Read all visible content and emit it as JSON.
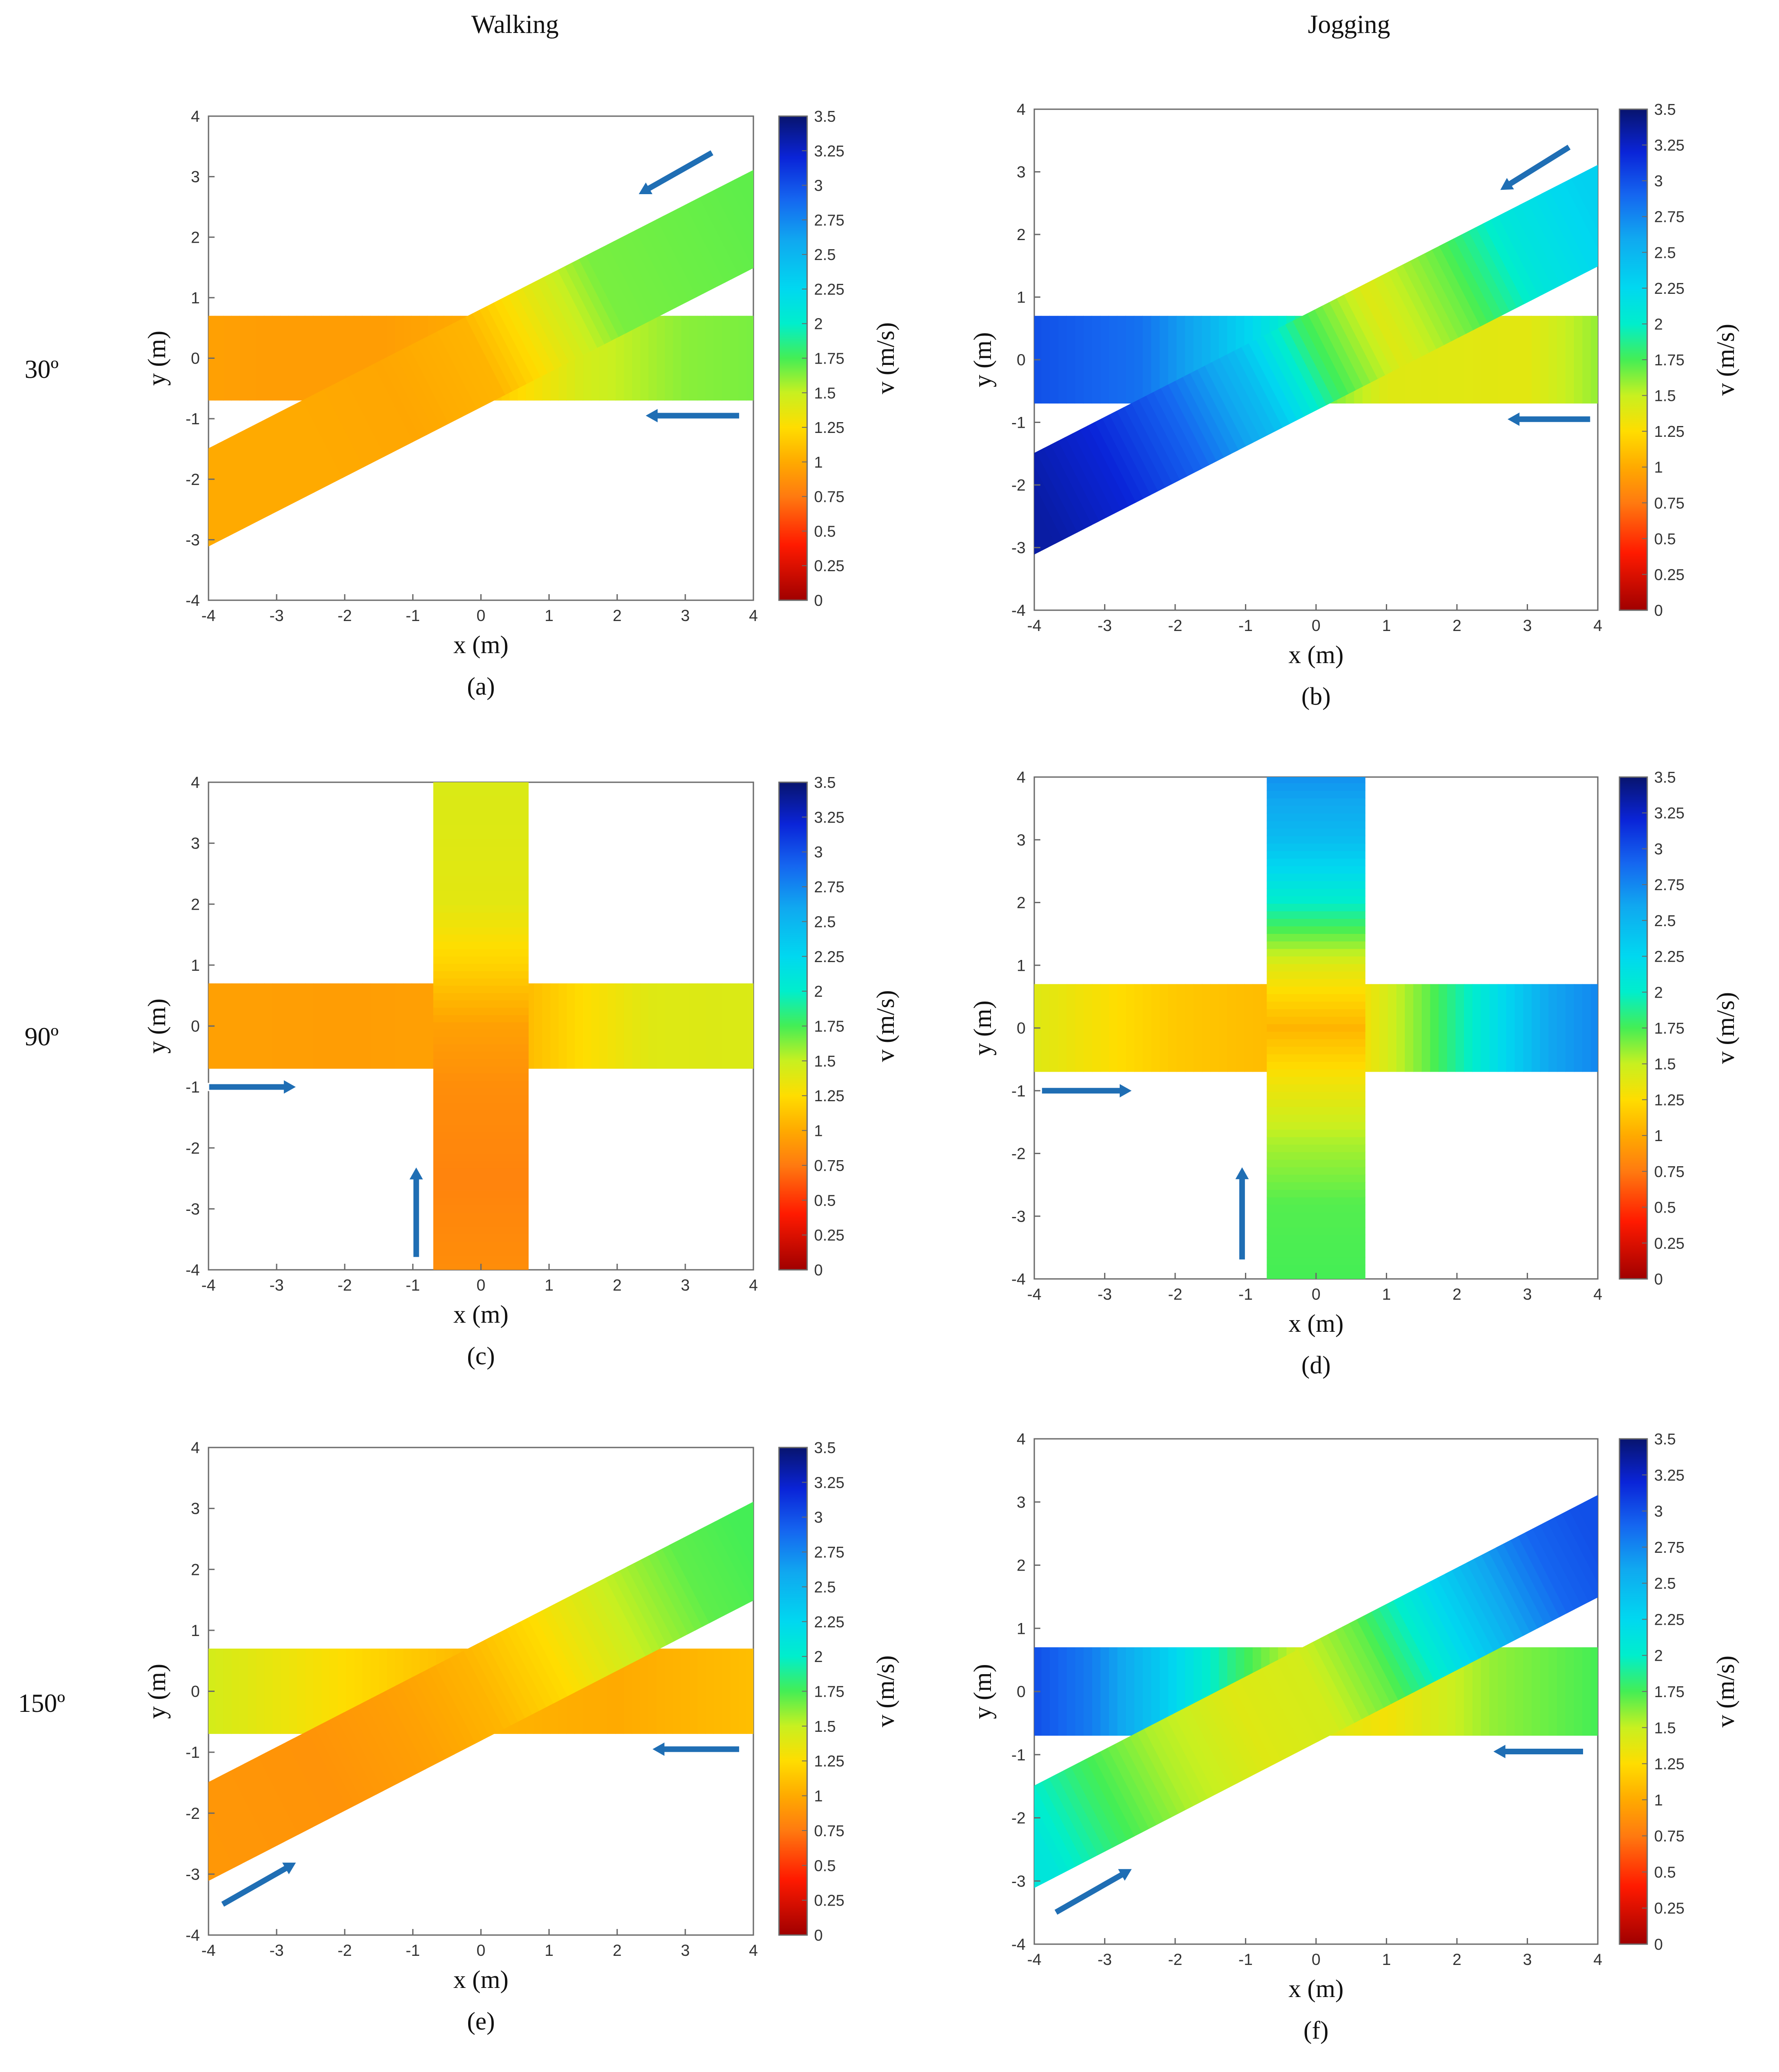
{
  "figure": {
    "column_titles": [
      "Walking",
      "Jogging"
    ],
    "row_labels": [
      "30º",
      "90º",
      "150º"
    ]
  },
  "colorbar": {
    "label": "v (m/s)",
    "ticks": [
      "0",
      "0.25",
      "0.5",
      "0.75",
      "1",
      "1.25",
      "1.5",
      "1.75",
      "2",
      "2.25",
      "2.5",
      "2.75",
      "3",
      "3.25",
      "3.5"
    ],
    "stops": [
      {
        "v": 0.0,
        "color": "#a00000"
      },
      {
        "v": 0.4,
        "color": "#ff1a00"
      },
      {
        "v": 0.75,
        "color": "#ff7a10"
      },
      {
        "v": 1.0,
        "color": "#ffaa00"
      },
      {
        "v": 1.25,
        "color": "#ffdd00"
      },
      {
        "v": 1.5,
        "color": "#c8f020"
      },
      {
        "v": 1.75,
        "color": "#44ee55"
      },
      {
        "v": 2.0,
        "color": "#00eecc"
      },
      {
        "v": 2.25,
        "color": "#00d8f0"
      },
      {
        "v": 2.6,
        "color": "#10a8f0"
      },
      {
        "v": 2.9,
        "color": "#1566f0"
      },
      {
        "v": 3.2,
        "color": "#0a24d8"
      },
      {
        "v": 3.5,
        "color": "#08146e"
      }
    ]
  },
  "arrow_color": "#1f6eb4",
  "chart_data": [
    {
      "type": "heatmap",
      "panel": "(a)",
      "mode": "Walking",
      "angle": "30º",
      "xlabel": "x (m)",
      "ylabel": "y (m)",
      "xlim": [
        -4,
        4
      ],
      "ylim": [
        -4,
        4
      ],
      "xticks": [
        "-4",
        "-3",
        "-2",
        "-1",
        "0",
        "1",
        "2",
        "3",
        "4"
      ],
      "yticks": [
        "-4",
        "-3",
        "-2",
        "-1",
        "0",
        "1",
        "2",
        "3",
        "4"
      ],
      "corridor_half_width": 0.7,
      "streams": [
        {
          "name": "horizontal stream",
          "from": [
            4,
            0
          ],
          "to": [
            -4,
            0
          ],
          "speed_along_path": [
            [
              0,
              1.65
            ],
            [
              1,
              1.62
            ],
            [
              2.5,
              1.45
            ],
            [
              3.6,
              1.2
            ],
            [
              4.2,
              1.0
            ],
            [
              5.5,
              0.93
            ],
            [
              7,
              0.93
            ],
            [
              8,
              0.95
            ]
          ]
        },
        {
          "name": "diagonal stream",
          "from": [
            4,
            2.3
          ],
          "to": [
            -4,
            -2.3
          ],
          "speed_along_path": [
            [
              0,
              1.7
            ],
            [
              2.5,
              1.65
            ],
            [
              3.6,
              1.35
            ],
            [
              4.6,
              1.05
            ],
            [
              6,
              0.98
            ],
            [
              7.5,
              1.0
            ],
            [
              9.2,
              1.0
            ]
          ]
        }
      ],
      "arrows": [
        {
          "from": [
            3.4,
            3.4
          ],
          "to": [
            2.3,
            2.7
          ]
        },
        {
          "from": [
            3.8,
            -0.95
          ],
          "to": [
            2.4,
            -0.95
          ]
        }
      ]
    },
    {
      "type": "heatmap",
      "panel": "(b)",
      "mode": "Jogging",
      "angle": "30º",
      "xlabel": "x (m)",
      "ylabel": "y (m)",
      "xlim": [
        -4,
        4
      ],
      "ylim": [
        -4,
        4
      ],
      "xticks": [
        "-4",
        "-3",
        "-2",
        "-1",
        "0",
        "1",
        "2",
        "3",
        "4"
      ],
      "yticks": [
        "-4",
        "-3",
        "-2",
        "-1",
        "0",
        "1",
        "2",
        "3",
        "4"
      ],
      "corridor_half_width": 0.7,
      "streams": [
        {
          "name": "horizontal stream",
          "from": [
            4,
            0
          ],
          "to": [
            -4,
            0
          ],
          "speed_along_path": [
            [
              0,
              1.6
            ],
            [
              1,
              1.38
            ],
            [
              3.0,
              1.4
            ],
            [
              3.8,
              1.65
            ],
            [
              4.6,
              2.1
            ],
            [
              5.6,
              2.55
            ],
            [
              6.5,
              2.85
            ],
            [
              8,
              3.0
            ]
          ]
        },
        {
          "name": "diagonal stream",
          "from": [
            4,
            2.3
          ],
          "to": [
            -4,
            -2.3
          ],
          "speed_along_path": [
            [
              0,
              2.3
            ],
            [
              1.2,
              2.1
            ],
            [
              2.3,
              1.7
            ],
            [
              3.5,
              1.4
            ],
            [
              4.6,
              1.8
            ],
            [
              5.6,
              2.45
            ],
            [
              6.8,
              2.9
            ],
            [
              8,
              3.2
            ],
            [
              9.2,
              3.35
            ]
          ]
        }
      ],
      "arrows": [
        {
          "from": [
            3.6,
            3.4
          ],
          "to": [
            2.6,
            2.7
          ]
        },
        {
          "from": [
            3.9,
            -0.95
          ],
          "to": [
            2.7,
            -0.95
          ]
        }
      ]
    },
    {
      "type": "heatmap",
      "panel": "(c)",
      "mode": "Walking",
      "angle": "90º",
      "xlabel": "x (m)",
      "ylabel": "y (m)",
      "xlim": [
        -4,
        4
      ],
      "ylim": [
        -4,
        4
      ],
      "xticks": [
        "-4",
        "-3",
        "-2",
        "-1",
        "0",
        "1",
        "2",
        "3",
        "4"
      ],
      "yticks": [
        "-4",
        "-3",
        "-2",
        "-1",
        "0",
        "1",
        "2",
        "3",
        "4"
      ],
      "corridor_half_width": 0.7,
      "streams": [
        {
          "name": "horizontal stream",
          "from": [
            -4,
            0
          ],
          "to": [
            4,
            0
          ],
          "speed_along_path": [
            [
              0,
              0.95
            ],
            [
              2,
              0.93
            ],
            [
              3.5,
              0.95
            ],
            [
              4.5,
              1.05
            ],
            [
              5.5,
              1.25
            ],
            [
              6.5,
              1.4
            ],
            [
              8,
              1.42
            ]
          ]
        },
        {
          "name": "vertical stream",
          "from": [
            0,
            -4
          ],
          "to": [
            0,
            4
          ],
          "speed_along_path": [
            [
              0,
              0.85
            ],
            [
              1.5,
              0.8
            ],
            [
              3,
              0.85
            ],
            [
              4,
              0.95
            ],
            [
              5,
              1.2
            ],
            [
              6,
              1.38
            ],
            [
              8,
              1.42
            ]
          ]
        }
      ],
      "arrows": [
        {
          "from": [
            -4,
            -1
          ],
          "to": [
            -2.7,
            -1
          ]
        },
        {
          "from": [
            -0.95,
            -3.8
          ],
          "to": [
            -0.95,
            -2.3
          ]
        }
      ]
    },
    {
      "type": "heatmap",
      "panel": "(d)",
      "mode": "Jogging",
      "angle": "90º",
      "xlabel": "x (m)",
      "ylabel": "y (m)",
      "xlim": [
        -4,
        4
      ],
      "ylim": [
        -4,
        4
      ],
      "xticks": [
        "-4",
        "-3",
        "-2",
        "-1",
        "0",
        "1",
        "2",
        "3",
        "4"
      ],
      "yticks": [
        "-4",
        "-3",
        "-2",
        "-1",
        "0",
        "1",
        "2",
        "3",
        "4"
      ],
      "corridor_half_width": 0.7,
      "streams": [
        {
          "name": "horizontal stream",
          "from": [
            -4,
            0
          ],
          "to": [
            4,
            0
          ],
          "speed_along_path": [
            [
              0,
              1.4
            ],
            [
              0.8,
              1.3
            ],
            [
              2,
              1.15
            ],
            [
              4,
              1.05
            ],
            [
              4.8,
              1.35
            ],
            [
              5.6,
              1.7
            ],
            [
              6.6,
              2.2
            ],
            [
              7.3,
              2.6
            ],
            [
              8,
              2.75
            ]
          ]
        },
        {
          "name": "vertical stream",
          "from": [
            0,
            -4
          ],
          "to": [
            0,
            4
          ],
          "speed_along_path": [
            [
              0,
              1.75
            ],
            [
              1.2,
              1.72
            ],
            [
              2.2,
              1.55
            ],
            [
              3.2,
              1.3
            ],
            [
              4,
              1.05
            ],
            [
              5,
              1.4
            ],
            [
              6,
              2.0
            ],
            [
              7,
              2.45
            ],
            [
              8,
              2.7
            ]
          ]
        }
      ],
      "arrows": [
        {
          "from": [
            -3.9,
            -1
          ],
          "to": [
            -2.6,
            -1
          ]
        },
        {
          "from": [
            -1.05,
            -3.7
          ],
          "to": [
            -1.05,
            -2.2
          ]
        }
      ]
    },
    {
      "type": "heatmap",
      "panel": "(e)",
      "mode": "Walking",
      "angle": "150º",
      "xlabel": "x (m)",
      "ylabel": "y (m)",
      "xlim": [
        -4,
        4
      ],
      "ylim": [
        -4,
        4
      ],
      "xticks": [
        "-4",
        "-3",
        "-2",
        "-1",
        "0",
        "1",
        "2",
        "3",
        "4"
      ],
      "yticks": [
        "-4",
        "-3",
        "-2",
        "-1",
        "0",
        "1",
        "2",
        "3",
        "4"
      ],
      "corridor_half_width": 0.7,
      "streams": [
        {
          "name": "horizontal stream",
          "from": [
            4,
            0
          ],
          "to": [
            -4,
            0
          ],
          "speed_along_path": [
            [
              0,
              1.1
            ],
            [
              2,
              1.0
            ],
            [
              4,
              1.05
            ],
            [
              5.5,
              1.2
            ],
            [
              7,
              1.35
            ],
            [
              8,
              1.45
            ]
          ]
        },
        {
          "name": "diagonal stream",
          "from": [
            -4,
            -2.3
          ],
          "to": [
            4,
            2.3
          ],
          "speed_along_path": [
            [
              0,
              0.9
            ],
            [
              2,
              0.88
            ],
            [
              3.5,
              0.95
            ],
            [
              4.6,
              1.05
            ],
            [
              5.8,
              1.25
            ],
            [
              7,
              1.5
            ],
            [
              8.2,
              1.7
            ],
            [
              9.2,
              1.75
            ]
          ]
        }
      ],
      "arrows": [
        {
          "from": [
            3.8,
            -0.95
          ],
          "to": [
            2.5,
            -0.95
          ]
        },
        {
          "from": [
            -3.8,
            -3.5
          ],
          "to": [
            -2.7,
            -2.8
          ]
        }
      ]
    },
    {
      "type": "heatmap",
      "panel": "(f)",
      "mode": "Jogging",
      "angle": "150º",
      "xlabel": "x (m)",
      "ylabel": "y (m)",
      "xlim": [
        -4,
        4
      ],
      "ylim": [
        -4,
        4
      ],
      "xticks": [
        "-4",
        "-3",
        "-2",
        "-1",
        "0",
        "1",
        "2",
        "3",
        "4"
      ],
      "yticks": [
        "-4",
        "-3",
        "-2",
        "-1",
        "0",
        "1",
        "2",
        "3",
        "4"
      ],
      "corridor_half_width": 0.7,
      "streams": [
        {
          "name": "horizontal stream",
          "from": [
            4,
            0
          ],
          "to": [
            -4,
            0
          ],
          "speed_along_path": [
            [
              0,
              1.75
            ],
            [
              1.5,
              1.6
            ],
            [
              3,
              1.3
            ],
            [
              4.2,
              1.45
            ],
            [
              5.2,
              1.85
            ],
            [
              6.2,
              2.35
            ],
            [
              7.2,
              2.8
            ],
            [
              8,
              3.0
            ]
          ]
        },
        {
          "name": "diagonal stream",
          "from": [
            -4,
            -2.3
          ],
          "to": [
            4,
            2.3
          ],
          "speed_along_path": [
            [
              0,
              2.1
            ],
            [
              1,
              1.8
            ],
            [
              2.2,
              1.55
            ],
            [
              3.5,
              1.4
            ],
            [
              4.6,
              1.45
            ],
            [
              5.6,
              1.7
            ],
            [
              6.6,
              2.15
            ],
            [
              7.6,
              2.6
            ],
            [
              8.4,
              2.9
            ],
            [
              9.2,
              3.0
            ]
          ]
        }
      ],
      "arrows": [
        {
          "from": [
            3.8,
            -0.95
          ],
          "to": [
            2.5,
            -0.95
          ]
        },
        {
          "from": [
            -3.7,
            -3.5
          ],
          "to": [
            -2.6,
            -2.8
          ]
        }
      ]
    }
  ]
}
